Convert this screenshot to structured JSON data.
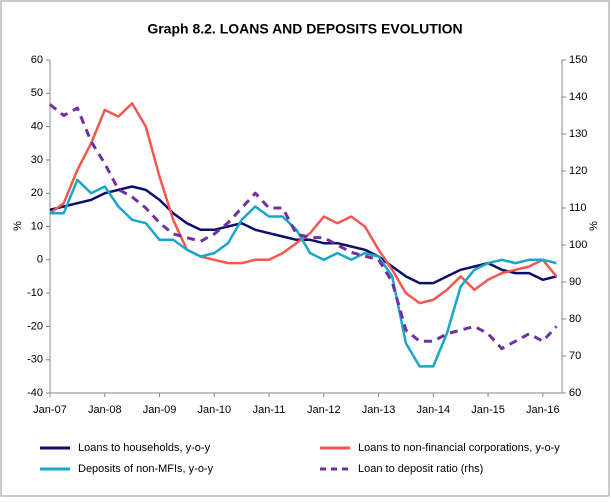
{
  "chart_data": {
    "type": "line",
    "title": "Graph 8.2. LOANS AND DEPOSITS EVOLUTION",
    "y_label": "%",
    "y2_label": "%",
    "categories": [
      "Jan-07",
      null,
      null,
      null,
      "Jan-08",
      null,
      null,
      null,
      "Jan-09",
      null,
      null,
      null,
      "Jan-10",
      null,
      null,
      null,
      "Jan-11",
      null,
      null,
      null,
      "Jan-12",
      null,
      null,
      null,
      "Jan-13",
      null,
      null,
      null,
      "Jan-14",
      null,
      null,
      null,
      "Jan-15",
      null,
      null,
      null,
      "Jan-16",
      null
    ],
    "ylim": [
      -40,
      60
    ],
    "yticks": [
      -40,
      -30,
      -20,
      -10,
      0,
      10,
      20,
      30,
      40,
      50,
      60
    ],
    "y2lim": [
      60,
      150
    ],
    "y2ticks": [
      60,
      70,
      80,
      90,
      100,
      110,
      120,
      130,
      140,
      150
    ],
    "legend": "bottom",
    "series": [
      {
        "name": "Loans to households, y-o-y",
        "color": "#0d0d6b",
        "dash": false,
        "values": [
          15,
          16,
          17,
          18,
          20,
          21,
          22,
          21,
          18,
          14,
          11,
          9,
          9,
          10,
          11,
          9,
          8,
          7,
          6,
          6,
          5,
          5,
          4,
          3,
          1,
          -2,
          -5,
          -7,
          -7,
          -5,
          -3,
          -2,
          -1,
          -3,
          -4,
          -4,
          -6,
          -5
        ]
      },
      {
        "name": "Loans to non-financial corporations, y-o-y",
        "color": "#f4574f",
        "dash": false,
        "values": [
          14,
          17,
          27,
          35,
          45,
          43,
          47,
          40,
          25,
          12,
          3,
          1,
          0,
          -1,
          -1,
          0,
          0,
          2,
          5,
          8,
          13,
          11,
          13,
          10,
          3,
          -3,
          -10,
          -13,
          -12,
          -9,
          -5,
          -9,
          -6,
          -4,
          -3,
          -2,
          0,
          -5
        ]
      },
      {
        "name": "Deposits of non-MFIs, y-o-y",
        "color": "#1aa6c8",
        "dash": false,
        "values": [
          14,
          14,
          24,
          20,
          22,
          16,
          12,
          11,
          6,
          6,
          3,
          1,
          2,
          5,
          12,
          16,
          13,
          13,
          9,
          2,
          0,
          2,
          0,
          2,
          1,
          -5,
          -25,
          -32,
          -32,
          -22,
          -8,
          -3,
          -1,
          0,
          -1,
          0,
          0,
          -1
        ]
      },
      {
        "name": "Loan to deposit ratio (rhs)",
        "color": "#7030a0",
        "dash": true,
        "axis": "y2",
        "values": [
          138,
          135,
          137,
          128,
          122,
          115,
          113,
          110,
          106,
          103,
          102,
          101,
          103,
          106,
          110,
          114,
          110,
          110,
          103,
          102,
          102,
          100,
          98,
          97,
          96,
          90,
          77,
          74,
          74,
          76,
          77,
          78,
          76,
          72,
          74,
          76,
          74,
          78
        ]
      }
    ]
  }
}
